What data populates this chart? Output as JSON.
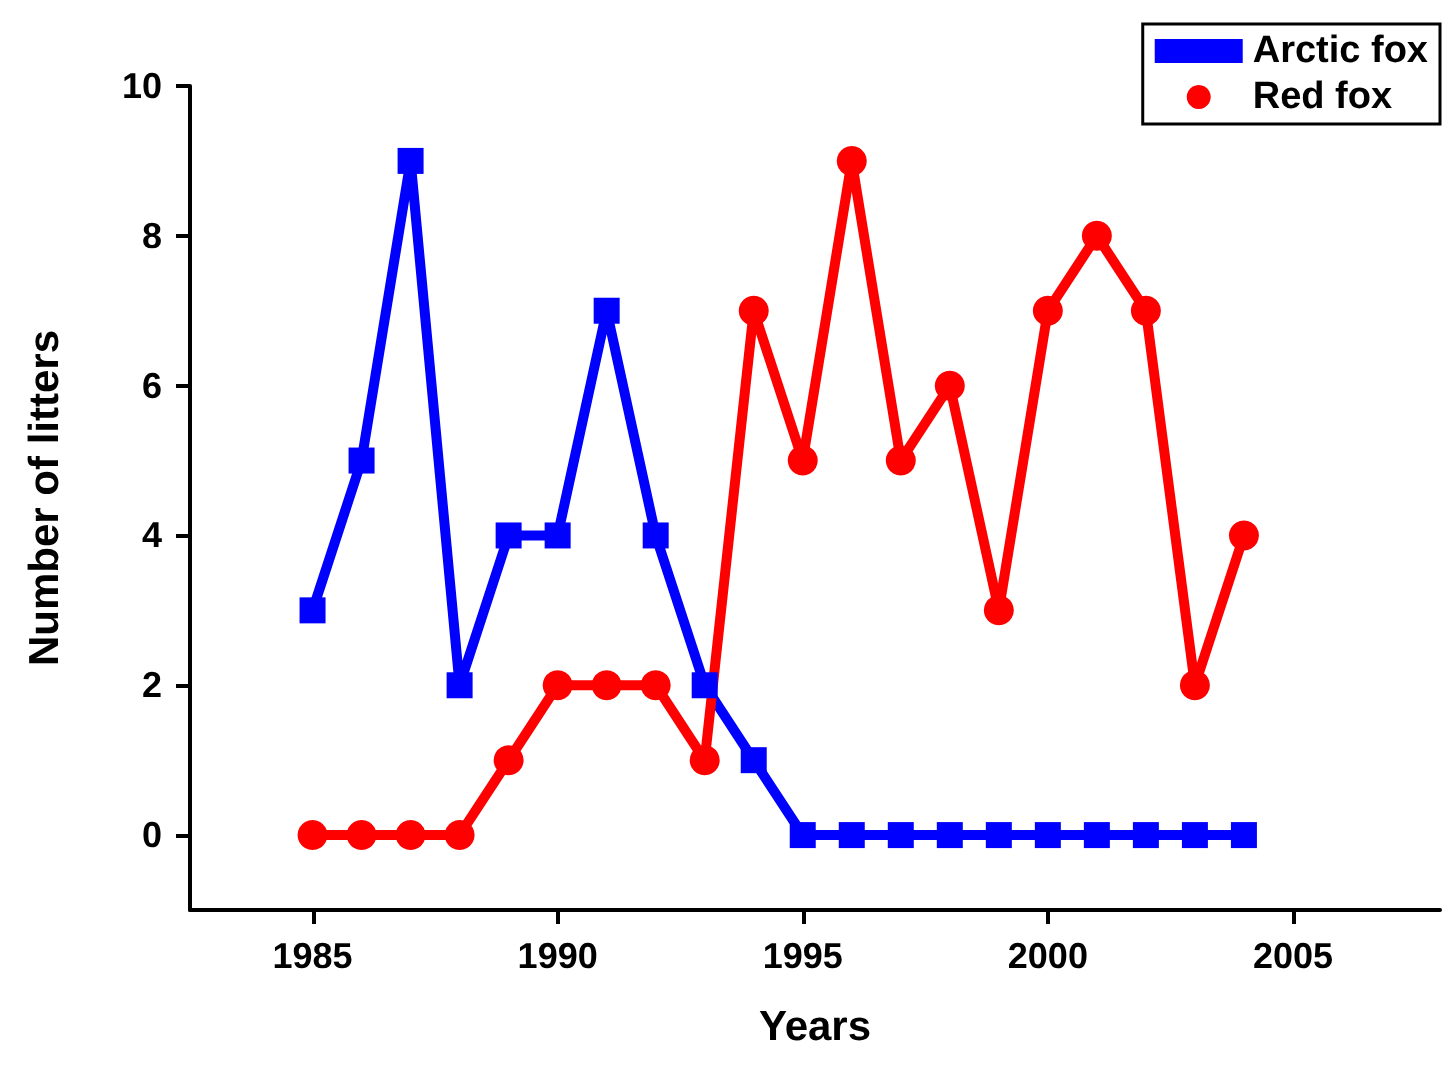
{
  "chart_data": {
    "type": "line",
    "xlabel": "Years",
    "ylabel": "Number of litters",
    "x": [
      1985,
      1986,
      1987,
      1988,
      1989,
      1990,
      1991,
      1992,
      1993,
      1994,
      1995,
      1996,
      1997,
      1998,
      1999,
      2000,
      2001,
      2002,
      2003,
      2004
    ],
    "series": [
      {
        "name": "Arctic fox",
        "color": "#0000ff",
        "marker": "square",
        "values": [
          3,
          5,
          9,
          2,
          4,
          4,
          7,
          4,
          2,
          1,
          0,
          0,
          0,
          0,
          0,
          0,
          0,
          0,
          0,
          0
        ]
      },
      {
        "name": "Red fox",
        "color": "#ff0000",
        "marker": "circle",
        "values": [
          0,
          0,
          0,
          0,
          1,
          2,
          2,
          2,
          1,
          7,
          5,
          9,
          5,
          6,
          3,
          7,
          8,
          7,
          2,
          4
        ]
      }
    ],
    "xlim": [
      1982.5,
      2008
    ],
    "xticks": [
      1985,
      1990,
      1995,
      2000,
      2005
    ],
    "ylim": [
      -1,
      10
    ],
    "yticks": [
      0,
      2,
      4,
      6,
      8,
      10
    ],
    "grid": false,
    "legend": "top right",
    "line_style": "solid"
  }
}
